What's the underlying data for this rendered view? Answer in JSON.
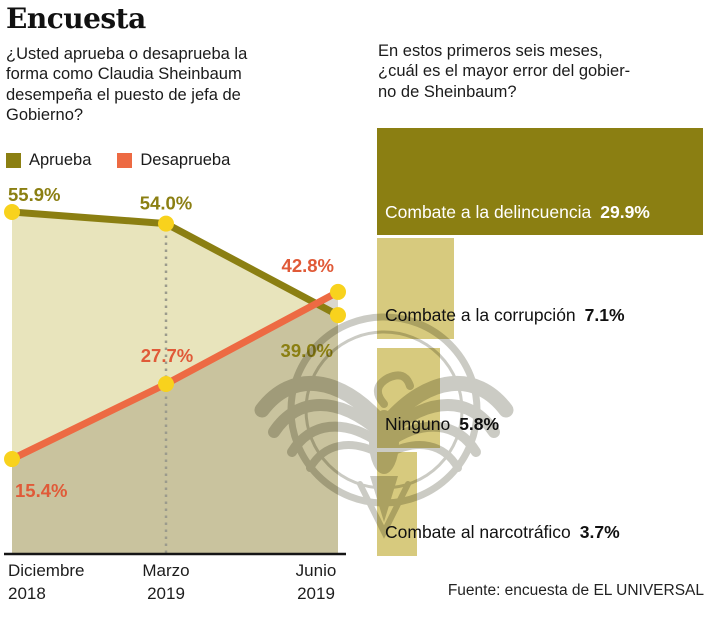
{
  "page": {
    "title": "Encuesta"
  },
  "left_chart": {
    "question": "¿Usted aprueba o desaprueba la\nforma como Claudia Sheinbaum\ndesempeña el puesto de jefa de\nGobierno?"
  },
  "right_chart": {
    "question": "En estos primeros seis meses,\n¿cuál es el mayor error del gobier-\nno de Sheinbaum?"
  },
  "footer": {
    "source": "Fuente: encuesta de EL UNIVERSAL"
  },
  "colors": {
    "olive": "#8b7f12",
    "orange": "#ed6a43",
    "orange_label": "#e05a38",
    "marker_yellow": "#f8d21d",
    "area_light": "#e8e4bc",
    "area_overlay": "rgba(121,113,82,0.28)",
    "bar_tan": "#d7ca7e",
    "axis": "#151515",
    "dashed": "#9b9b8c",
    "watermark": "#cbcbc4"
  },
  "chart_data": [
    {
      "type": "line",
      "title": "¿Usted aprueba o desaprueba la forma como Claudia Sheinbaum desempeña el puesto de jefa de Gobierno?",
      "categories": [
        "Diciembre 2018",
        "Marzo 2019",
        "Junio 2019"
      ],
      "series": [
        {
          "name": "Aprueba",
          "color": "#8b7f12",
          "values": [
            55.9,
            54.0,
            39.0
          ]
        },
        {
          "name": "Desaprueba",
          "color": "#ed6a43",
          "values": [
            15.4,
            27.7,
            42.8
          ]
        }
      ],
      "value_suffix": "%",
      "ylim": [
        0,
        62
      ],
      "grid": false,
      "area_fill": true,
      "marker": "yellow-dot",
      "legend_position": "top-left",
      "annotations": [
        "dashed vertical gridline at Marzo 2019"
      ]
    },
    {
      "type": "bar",
      "orientation": "horizontal",
      "title": "En estos primeros seis meses, ¿cuál es el mayor error del gobierno de Sheinbaum?",
      "categories": [
        "Combate a la delincuencia",
        "Combate a la corrupción",
        "Ninguno",
        "Combate al narcotráfico"
      ],
      "values": [
        29.9,
        7.1,
        5.8,
        3.7
      ],
      "value_suffix": "%",
      "xlim": [
        0,
        29.9
      ],
      "highlight_index": 0
    }
  ]
}
